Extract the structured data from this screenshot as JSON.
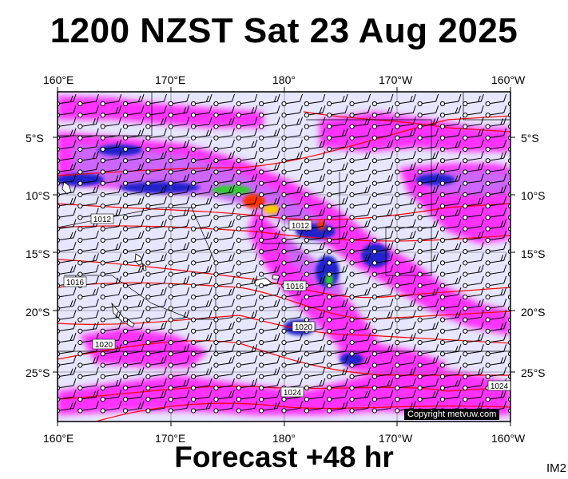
{
  "title": "1200 NZST Sat 23 Aug 2025",
  "footer": "Forecast +48 hr",
  "map_code": "IM2",
  "copyright": "Copyright metvuw.com",
  "lon_labels": [
    "160°E",
    "170°E",
    "180°",
    "170°W",
    "160°W"
  ],
  "lat_labels": [
    "5°S",
    "10°S",
    "15°S",
    "20°S",
    "25°S"
  ],
  "isobar_labels": [
    "1012",
    "1012",
    "1016",
    "1016",
    "1020",
    "1020",
    "1024",
    "1024"
  ],
  "colors": {
    "background": "#e6e6ff",
    "rain_light": "#ff33ff",
    "rain_medium": "#cc66ff",
    "rain_heavy": "#2222cc",
    "rain_very_heavy": "#ff3300",
    "isobar": "#ff0000",
    "coast": "#000000"
  }
}
